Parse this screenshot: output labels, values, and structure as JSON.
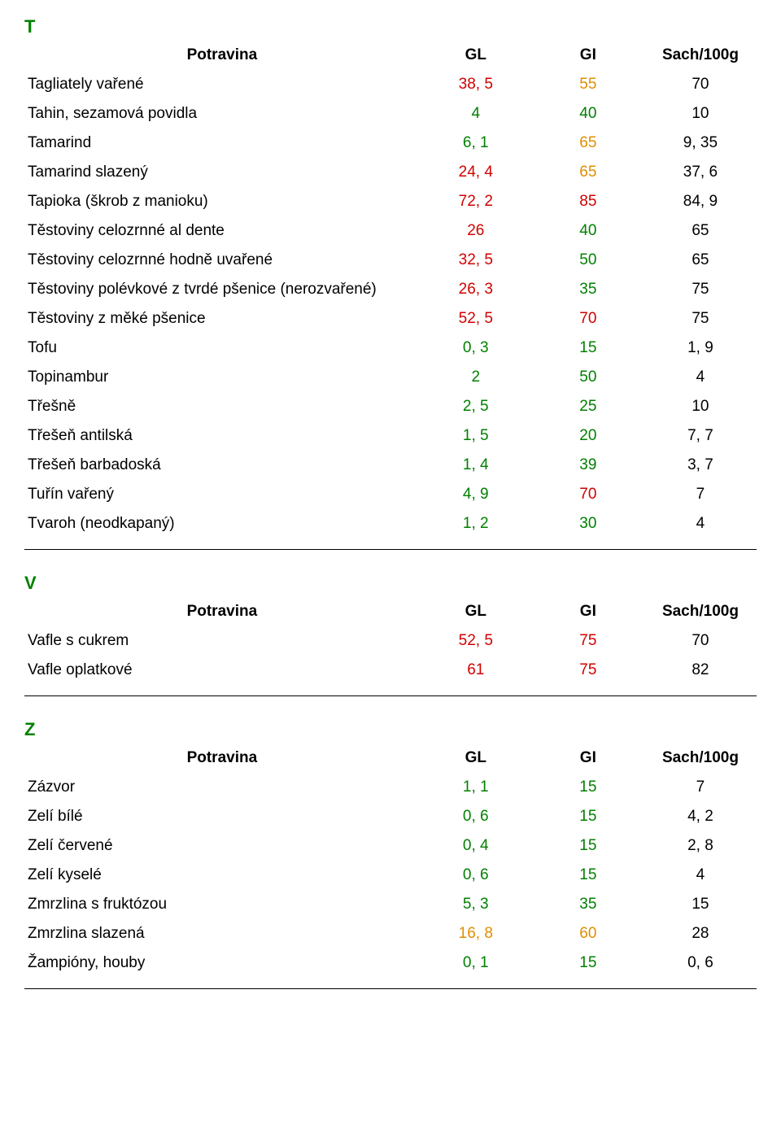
{
  "colors": {
    "green": "#008000",
    "orange": "#e08e00",
    "red": "#d10000",
    "black": "#000000"
  },
  "columns": {
    "name": "Potravina",
    "gl": "GL",
    "gi": "GI",
    "sach": "Sach/100g"
  },
  "sections": [
    {
      "letter": "T",
      "rows": [
        {
          "name": "Tagliately vařené",
          "gl": "38, 5",
          "gl_c": "red",
          "gi": "55",
          "gi_c": "orange",
          "sach": "70"
        },
        {
          "name": "Tahin, sezamová povidla",
          "gl": "4",
          "gl_c": "green",
          "gi": "40",
          "gi_c": "green",
          "sach": "10"
        },
        {
          "name": "Tamarind",
          "gl": "6, 1",
          "gl_c": "green",
          "gi": "65",
          "gi_c": "orange",
          "sach": "9, 35"
        },
        {
          "name": "Tamarind slazený",
          "gl": "24, 4",
          "gl_c": "red",
          "gi": "65",
          "gi_c": "orange",
          "sach": "37, 6"
        },
        {
          "name": "Tapioka (škrob z manioku)",
          "gl": "72, 2",
          "gl_c": "red",
          "gi": "85",
          "gi_c": "red",
          "sach": "84, 9"
        },
        {
          "name": "Těstoviny celozrnné al dente",
          "gl": "26",
          "gl_c": "red",
          "gi": "40",
          "gi_c": "green",
          "sach": "65"
        },
        {
          "name": "Těstoviny celozrnné hodně uvařené",
          "gl": "32, 5",
          "gl_c": "red",
          "gi": "50",
          "gi_c": "green",
          "sach": "65"
        },
        {
          "name": "Těstoviny polévkové z tvrdé pšenice (nerozvařené)",
          "gl": "26, 3",
          "gl_c": "red",
          "gi": "35",
          "gi_c": "green",
          "sach": "75"
        },
        {
          "name": "Těstoviny z měké pšenice",
          "gl": "52, 5",
          "gl_c": "red",
          "gi": "70",
          "gi_c": "red",
          "sach": "75"
        },
        {
          "name": "Tofu",
          "gl": "0, 3",
          "gl_c": "green",
          "gi": "15",
          "gi_c": "green",
          "sach": "1, 9"
        },
        {
          "name": "Topinambur",
          "gl": "2",
          "gl_c": "green",
          "gi": "50",
          "gi_c": "green",
          "sach": "4"
        },
        {
          "name": "Třešně",
          "gl": "2, 5",
          "gl_c": "green",
          "gi": "25",
          "gi_c": "green",
          "sach": "10"
        },
        {
          "name": "Třešeň antilská",
          "gl": "1, 5",
          "gl_c": "green",
          "gi": "20",
          "gi_c": "green",
          "sach": "7, 7"
        },
        {
          "name": "Třešeň barbadoská",
          "gl": "1, 4",
          "gl_c": "green",
          "gi": "39",
          "gi_c": "green",
          "sach": "3, 7"
        },
        {
          "name": "Tuřín vařený",
          "gl": "4, 9",
          "gl_c": "green",
          "gi": "70",
          "gi_c": "red",
          "sach": "7"
        },
        {
          "name": "Tvaroh (neodkapaný)",
          "gl": "1, 2",
          "gl_c": "green",
          "gi": "30",
          "gi_c": "green",
          "sach": "4"
        }
      ]
    },
    {
      "letter": "V",
      "rows": [
        {
          "name": "Vafle s cukrem",
          "gl": "52, 5",
          "gl_c": "red",
          "gi": "75",
          "gi_c": "red",
          "sach": "70"
        },
        {
          "name": "Vafle oplatkové",
          "gl": "61",
          "gl_c": "red",
          "gi": "75",
          "gi_c": "red",
          "sach": "82"
        }
      ]
    },
    {
      "letter": "Z",
      "rows": [
        {
          "name": "Zázvor",
          "gl": "1, 1",
          "gl_c": "green",
          "gi": "15",
          "gi_c": "green",
          "sach": "7"
        },
        {
          "name": "Zelí bílé",
          "gl": "0, 6",
          "gl_c": "green",
          "gi": "15",
          "gi_c": "green",
          "sach": "4, 2"
        },
        {
          "name": "Zelí červené",
          "gl": "0, 4",
          "gl_c": "green",
          "gi": "15",
          "gi_c": "green",
          "sach": "2, 8"
        },
        {
          "name": "Zelí kyselé",
          "gl": "0, 6",
          "gl_c": "green",
          "gi": "15",
          "gi_c": "green",
          "sach": "4"
        },
        {
          "name": "Zmrzlina s fruktózou",
          "gl": "5, 3",
          "gl_c": "green",
          "gi": "35",
          "gi_c": "green",
          "sach": "15"
        },
        {
          "name": "Zmrzlina slazená",
          "gl": "16, 8",
          "gl_c": "orange",
          "gi": "60",
          "gi_c": "orange",
          "sach": "28"
        },
        {
          "name": "Žampióny, houby",
          "gl": "0, 1",
          "gl_c": "green",
          "gi": "15",
          "gi_c": "green",
          "sach": "0, 6"
        }
      ]
    }
  ]
}
